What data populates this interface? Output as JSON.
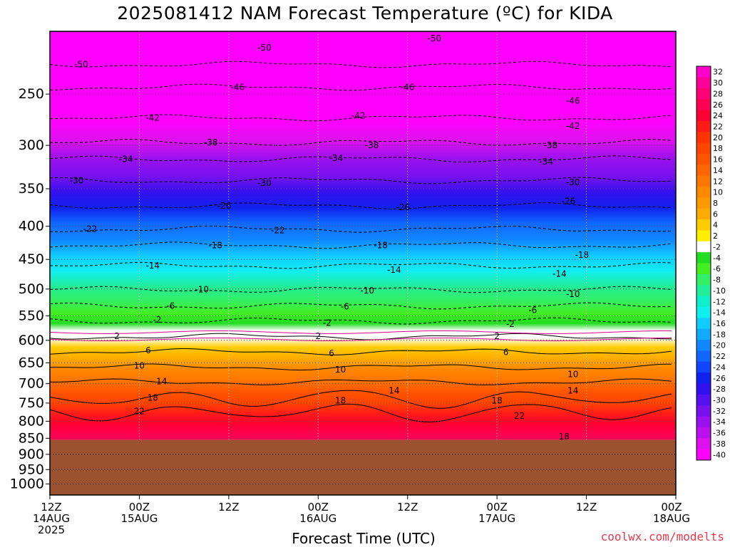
{
  "chart_data": {
    "type": "heatmap",
    "title": "2025081412 NAM Forecast Temperature (ºC) for KIDA",
    "xlabel": "Forecast Time (UTC)",
    "credit": "coolwx.com/modelts",
    "yaxis": {
      "scale": "pressure (inverted)",
      "ylim": [
        1040,
        200
      ],
      "ticks": [
        250,
        300,
        350,
        400,
        450,
        500,
        550,
        600,
        650,
        700,
        750,
        800,
        850,
        900,
        950,
        1000
      ]
    },
    "xaxis": {
      "ticks": [
        {
          "line1": "12Z",
          "line2": "14AUG",
          "line3": "2025"
        },
        {
          "line1": "00Z",
          "line2": "15AUG",
          "line3": ""
        },
        {
          "line1": "12Z",
          "line2": "",
          "line3": ""
        },
        {
          "line1": "00Z",
          "line2": "16AUG",
          "line3": ""
        },
        {
          "line1": "12Z",
          "line2": "",
          "line3": ""
        },
        {
          "line1": "00Z",
          "line2": "17AUG",
          "line3": ""
        },
        {
          "line1": "12Z",
          "line2": "",
          "line3": ""
        },
        {
          "line1": "00Z",
          "line2": "18AUG",
          "line3": ""
        }
      ]
    },
    "ground_below_hPa": 855,
    "ground_color": "#9a5230",
    "levels": [
      {
        "p": 210,
        "t": -52
      },
      {
        "p": 230,
        "t": -49
      },
      {
        "p": 250,
        "t": -46
      },
      {
        "p": 275,
        "t": -42
      },
      {
        "p": 295,
        "t": -38
      },
      {
        "p": 315,
        "t": -34
      },
      {
        "p": 335,
        "t": -31
      },
      {
        "p": 355,
        "t": -28
      },
      {
        "p": 375,
        "t": -25
      },
      {
        "p": 395,
        "t": -22
      },
      {
        "p": 420,
        "t": -19
      },
      {
        "p": 445,
        "t": -16
      },
      {
        "p": 470,
        "t": -13
      },
      {
        "p": 495,
        "t": -10
      },
      {
        "p": 520,
        "t": -7
      },
      {
        "p": 545,
        "t": -5
      },
      {
        "p": 565,
        "t": -3
      },
      {
        "p": 580,
        "t": -1
      },
      {
        "p": 595,
        "t": 1
      },
      {
        "p": 615,
        "t": 4
      },
      {
        "p": 640,
        "t": 7
      },
      {
        "p": 665,
        "t": 10
      },
      {
        "p": 690,
        "t": 13
      },
      {
        "p": 720,
        "t": 16
      },
      {
        "p": 750,
        "t": 19
      },
      {
        "p": 780,
        "t": 22
      },
      {
        "p": 810,
        "t": 25
      },
      {
        "p": 840,
        "t": 27
      }
    ],
    "contour_labels": [
      {
        "v": "-50",
        "xi": 0.35,
        "p": 225
      },
      {
        "v": "-50",
        "xi": 2.4,
        "p": 212
      },
      {
        "v": "-50",
        "xi": 4.3,
        "p": 205
      },
      {
        "v": "-46",
        "xi": 2.1,
        "p": 244
      },
      {
        "v": "-46",
        "xi": 4.0,
        "p": 244
      },
      {
        "v": "-46",
        "xi": 5.85,
        "p": 256
      },
      {
        "v": "-42",
        "xi": 1.15,
        "p": 272
      },
      {
        "v": "-42",
        "xi": 3.45,
        "p": 270
      },
      {
        "v": "-42",
        "xi": 5.85,
        "p": 280
      },
      {
        "v": "-38",
        "xi": 1.8,
        "p": 297
      },
      {
        "v": "-38",
        "xi": 3.6,
        "p": 300
      },
      {
        "v": "-38",
        "xi": 5.6,
        "p": 300
      },
      {
        "v": "-34",
        "xi": 0.85,
        "p": 315
      },
      {
        "v": "-34",
        "xi": 3.2,
        "p": 314
      },
      {
        "v": "-34",
        "xi": 5.55,
        "p": 318
      },
      {
        "v": "-30",
        "xi": 0.3,
        "p": 340
      },
      {
        "v": "-30",
        "xi": 2.4,
        "p": 343
      },
      {
        "v": "-30",
        "xi": 5.85,
        "p": 342
      },
      {
        "v": "-26",
        "xi": 1.95,
        "p": 372
      },
      {
        "v": "-26",
        "xi": 3.95,
        "p": 374
      },
      {
        "v": "-26",
        "xi": 5.8,
        "p": 366
      },
      {
        "v": "-22",
        "xi": 0.45,
        "p": 404
      },
      {
        "v": "-22",
        "xi": 2.55,
        "p": 406
      },
      {
        "v": "-18",
        "xi": 1.85,
        "p": 428
      },
      {
        "v": "-18",
        "xi": 3.7,
        "p": 428
      },
      {
        "v": "-18",
        "xi": 5.95,
        "p": 443
      },
      {
        "v": "-14",
        "xi": 1.15,
        "p": 460
      },
      {
        "v": "-14",
        "xi": 3.85,
        "p": 467
      },
      {
        "v": "-14",
        "xi": 5.7,
        "p": 474
      },
      {
        "v": "-10",
        "xi": 1.7,
        "p": 501
      },
      {
        "v": "-10",
        "xi": 3.55,
        "p": 503
      },
      {
        "v": "-10",
        "xi": 5.85,
        "p": 509
      },
      {
        "v": "-6",
        "xi": 1.35,
        "p": 531
      },
      {
        "v": "-6",
        "xi": 3.3,
        "p": 532
      },
      {
        "v": "-6",
        "xi": 5.4,
        "p": 539
      },
      {
        "v": "-2",
        "xi": 1.2,
        "p": 558
      },
      {
        "v": "-2",
        "xi": 3.1,
        "p": 564
      },
      {
        "v": "-2",
        "xi": 5.15,
        "p": 566
      },
      {
        "v": "2",
        "xi": 0.75,
        "p": 591
      },
      {
        "v": "2",
        "xi": 3.0,
        "p": 591
      },
      {
        "v": "2",
        "xi": 5.0,
        "p": 591
      },
      {
        "v": "6",
        "xi": 1.1,
        "p": 622
      },
      {
        "v": "6",
        "xi": 3.15,
        "p": 628
      },
      {
        "v": "6",
        "xi": 5.1,
        "p": 626
      },
      {
        "v": "10",
        "xi": 1.0,
        "p": 657
      },
      {
        "v": "10",
        "xi": 3.25,
        "p": 666
      },
      {
        "v": "10",
        "xi": 5.85,
        "p": 677
      },
      {
        "v": "14",
        "xi": 1.25,
        "p": 694
      },
      {
        "v": "14",
        "xi": 3.85,
        "p": 718
      },
      {
        "v": "14",
        "xi": 5.85,
        "p": 718
      },
      {
        "v": "18",
        "xi": 1.15,
        "p": 736
      },
      {
        "v": "18",
        "xi": 3.25,
        "p": 744
      },
      {
        "v": "18",
        "xi": 5.0,
        "p": 744
      },
      {
        "v": "18",
        "xi": 5.75,
        "p": 845
      },
      {
        "v": "22",
        "xi": 1.0,
        "p": 772
      },
      {
        "v": "22",
        "xi": 5.25,
        "p": 785
      }
    ],
    "colorbar": {
      "levels": [
        32,
        30,
        28,
        26,
        24,
        22,
        20,
        18,
        16,
        14,
        12,
        10,
        8,
        6,
        4,
        2,
        -2,
        -4,
        -6,
        -8,
        -10,
        -12,
        -14,
        -16,
        -18,
        -20,
        -22,
        -24,
        -26,
        -28,
        -30,
        -32,
        -34,
        -36,
        -38,
        -40
      ],
      "colors": [
        "#ff00cc",
        "#ff0099",
        "#ff0077",
        "#ff0055",
        "#ff0033",
        "#ff1a1a",
        "#ff3300",
        "#ff4400",
        "#ff5500",
        "#ff6600",
        "#ff7700",
        "#ff8800",
        "#ff9900",
        "#ffaa00",
        "#ffcc00",
        "#ffee00",
        "#ffffff",
        "#22dd22",
        "#44ee22",
        "#33ee66",
        "#22ee99",
        "#11eecc",
        "#11eeee",
        "#11ccff",
        "#11aaff",
        "#1188ff",
        "#1166ff",
        "#1144ff",
        "#1122ee",
        "#3311ee",
        "#5511ee",
        "#7711ee",
        "#9911ee",
        "#bb11ee",
        "#dd11ee",
        "#ff00ff"
      ]
    },
    "grid": true
  }
}
